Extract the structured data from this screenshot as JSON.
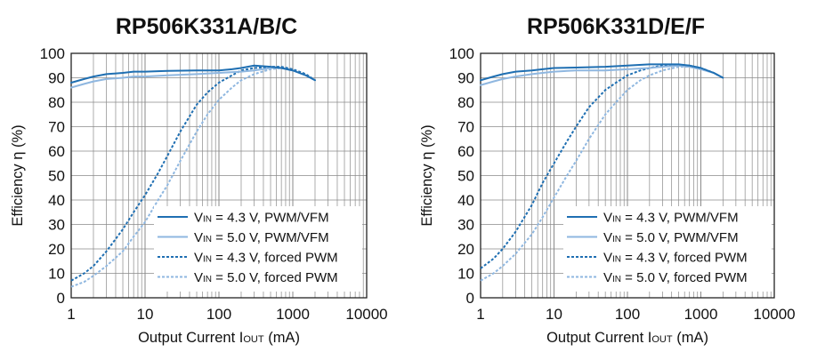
{
  "colors": {
    "dark": "#1f6fb2",
    "light": "#8fb7e0",
    "grid": "#8a8a8a",
    "axis": "#222222",
    "text": "#111111"
  },
  "chart_data": [
    {
      "type": "line",
      "title": "RP506K331A/B/C",
      "xlabel": {
        "main": "Output Current I",
        "sub": "OUT",
        "tail": " (mA)"
      },
      "ylabel": "Efficiency η (%)",
      "xscale": "log",
      "xlim": [
        1,
        10000
      ],
      "ylim": [
        0,
        100
      ],
      "xticks": [
        "1",
        "10",
        "100",
        "1000",
        "10000"
      ],
      "yticks": [
        "0",
        "10",
        "20",
        "30",
        "40",
        "50",
        "60",
        "70",
        "80",
        "90",
        "100"
      ],
      "grid": true,
      "legend_position": "bottom-right",
      "series": [
        {
          "name": "V_IN = 4.3 V, PWM/VFM",
          "legend": {
            "pre": "V",
            "sub": "IN",
            "post": " = 4.3 V, PWM/VFM"
          },
          "color": "dark",
          "dash": false,
          "x": [
            1,
            1.5,
            2,
            3,
            5,
            7,
            10,
            20,
            50,
            100,
            150,
            200,
            300,
            500,
            700,
            1000,
            1500,
            2000
          ],
          "y": [
            88,
            89.5,
            90.5,
            91.5,
            92,
            92.5,
            92.5,
            92.8,
            93,
            93,
            93.5,
            94,
            95,
            94.5,
            94,
            93,
            91,
            89
          ]
        },
        {
          "name": "V_IN = 5.0 V, PWM/VFM",
          "legend": {
            "pre": "V",
            "sub": "IN",
            "post": " = 5.0 V, PWM/VFM"
          },
          "color": "light",
          "dash": false,
          "x": [
            1,
            1.5,
            2,
            3,
            5,
            7,
            10,
            20,
            50,
            100,
            200,
            300,
            500,
            700,
            1000,
            1500,
            2000
          ],
          "y": [
            86,
            87.5,
            88.5,
            89.5,
            90,
            90.5,
            90.5,
            91,
            91.5,
            92,
            92.5,
            93,
            94,
            94,
            93,
            91,
            89
          ]
        },
        {
          "name": "V_IN = 4.3 V, forced PWM",
          "legend": {
            "pre": "V",
            "sub": "IN",
            "post": " = 4.3 V, forced PWM"
          },
          "color": "dark",
          "dash": true,
          "x": [
            1,
            1.5,
            2,
            3,
            5,
            7,
            10,
            15,
            20,
            30,
            50,
            70,
            100,
            150,
            200,
            300,
            500,
            700,
            1000,
            1500,
            2000
          ],
          "y": [
            7,
            10,
            13,
            19,
            28,
            35,
            42,
            51,
            58,
            68,
            79,
            84,
            88,
            91,
            93,
            94,
            94.5,
            94.5,
            93.5,
            91.5,
            89
          ]
        },
        {
          "name": "V_IN = 5.0 V, forced PWM",
          "legend": {
            "pre": "V",
            "sub": "IN",
            "post": " = 5.0 V, forced PWM"
          },
          "color": "light",
          "dash": true,
          "x": [
            1,
            1.5,
            2,
            3,
            5,
            7,
            10,
            15,
            20,
            30,
            50,
            70,
            100,
            150,
            200,
            300,
            500,
            700,
            1000,
            1500,
            2000
          ],
          "y": [
            4.5,
            6.5,
            9,
            13,
            19,
            25,
            31,
            40,
            46,
            56,
            68,
            75,
            81,
            86,
            89,
            91.5,
            93.5,
            94,
            93,
            91,
            89
          ]
        }
      ]
    },
    {
      "type": "line",
      "title": "RP506K331D/E/F",
      "xlabel": {
        "main": "Output Current I",
        "sub": "OUT",
        "tail": " (mA)"
      },
      "ylabel": "Efficiency η (%)",
      "xscale": "log",
      "xlim": [
        1,
        10000
      ],
      "ylim": [
        0,
        100
      ],
      "xticks": [
        "1",
        "10",
        "100",
        "1000",
        "10000"
      ],
      "yticks": [
        "0",
        "10",
        "20",
        "30",
        "40",
        "50",
        "60",
        "70",
        "80",
        "90",
        "100"
      ],
      "grid": true,
      "legend_position": "bottom-right",
      "series": [
        {
          "name": "V_IN = 4.3 V, PWM/VFM",
          "legend": {
            "pre": "V",
            "sub": "IN",
            "post": " = 4.3 V, PWM/VFM"
          },
          "color": "dark",
          "dash": false,
          "x": [
            1,
            1.5,
            2,
            3,
            5,
            7,
            10,
            20,
            50,
            100,
            200,
            300,
            500,
            700,
            1000,
            1500,
            2000
          ],
          "y": [
            89,
            90.5,
            91.5,
            92.5,
            93,
            93.5,
            94,
            94.2,
            94.5,
            95,
            95.5,
            95.5,
            95.5,
            95,
            94,
            92,
            90
          ]
        },
        {
          "name": "V_IN = 5.0 V, PWM/VFM",
          "legend": {
            "pre": "V",
            "sub": "IN",
            "post": " = 5.0 V, PWM/VFM"
          },
          "color": "light",
          "dash": false,
          "x": [
            1,
            1.5,
            2,
            3,
            5,
            7,
            10,
            20,
            50,
            100,
            200,
            300,
            500,
            700,
            1000,
            1500,
            2000
          ],
          "y": [
            87,
            88.5,
            89.5,
            90.5,
            91.5,
            92,
            92.5,
            93,
            93,
            93.5,
            94,
            94.5,
            95,
            94.5,
            93.5,
            92,
            90
          ]
        },
        {
          "name": "V_IN = 4.3 V, forced PWM",
          "legend": {
            "pre": "V",
            "sub": "IN",
            "post": " = 4.3 V, forced PWM"
          },
          "color": "dark",
          "dash": true,
          "x": [
            1,
            1.5,
            2,
            3,
            5,
            7,
            10,
            15,
            20,
            30,
            50,
            70,
            100,
            150,
            200,
            300,
            500,
            700,
            1000,
            1500,
            2000
          ],
          "y": [
            12,
            16,
            20,
            27,
            38,
            47,
            55,
            64,
            70,
            78,
            85,
            88,
            91,
            93,
            94,
            95,
            95,
            95,
            94,
            92,
            90
          ]
        },
        {
          "name": "V_IN = 5.0 V, forced PWM",
          "legend": {
            "pre": "V",
            "sub": "IN",
            "post": " = 5.0 V, forced PWM"
          },
          "color": "light",
          "dash": true,
          "x": [
            1,
            1.5,
            2,
            3,
            5,
            7,
            10,
            15,
            20,
            30,
            50,
            70,
            100,
            150,
            200,
            300,
            500,
            700,
            1000,
            1500,
            2000
          ],
          "y": [
            7,
            10,
            13,
            18,
            26,
            33,
            41,
            50,
            56,
            65,
            75,
            80,
            85,
            89,
            91,
            93,
            94.5,
            94.5,
            93.5,
            92,
            90
          ]
        }
      ]
    }
  ]
}
